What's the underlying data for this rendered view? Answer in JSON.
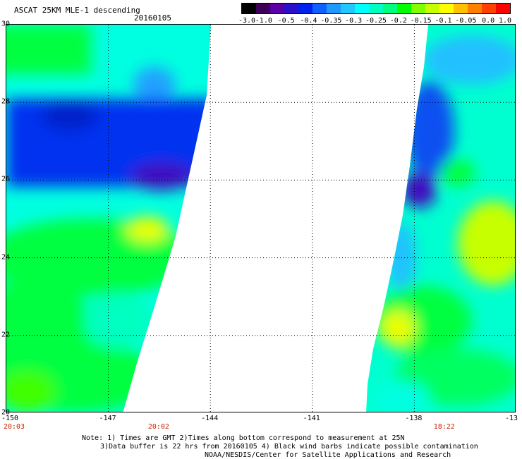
{
  "header": {
    "title": "ASCAT 25KM MLE-1 descending",
    "date": "20160105"
  },
  "colorbar": {
    "labels": [
      "-3.0",
      "-1.0",
      "-0.5",
      "-0.4",
      "-0.35",
      "-0.3",
      "-0.25",
      "-0.2",
      "-0.15",
      "-0.1",
      "-0.05",
      "0.0",
      "1.0"
    ],
    "colors": [
      "#000000",
      "#3c0058",
      "#5a00a8",
      "#2a10c8",
      "#0020f0",
      "#1060ff",
      "#2098ff",
      "#20c8ff",
      "#00ffff",
      "#00ffc0",
      "#00ff80",
      "#00ff00",
      "#80ff00",
      "#c8ff00",
      "#ffff00",
      "#ffc000",
      "#ff8000",
      "#ff4000",
      "#ff0000"
    ]
  },
  "map": {
    "lon_range": [
      -150,
      -135
    ],
    "lat_range": [
      20,
      30
    ],
    "lat_labels": [
      "30",
      "28",
      "26",
      "24",
      "22",
      "20"
    ],
    "lon_labels": [
      "-150",
      "-147",
      "-144",
      "-141",
      "-138",
      "-13"
    ],
    "time_labels": [
      "20:03",
      "20:02",
      "18:22"
    ],
    "colors": {
      "green": "#00ff40",
      "cyan": "#00ffe0",
      "light_blue": "#20c0ff",
      "blue": "#0030f0",
      "purple": "#4010c0",
      "yellow": "#e8ff00",
      "grid": "#000000"
    }
  },
  "notes": {
    "line1": "Note: 1) Times are GMT 2)Times along bottom correspond to measurement at 25N",
    "line2": "3)Data buffer is 22 hrs from 20160105 4) Black wind barbs indicate possible contamination",
    "line3": "NOAA/NESDIS/Center for Satellite Applications and Research"
  }
}
